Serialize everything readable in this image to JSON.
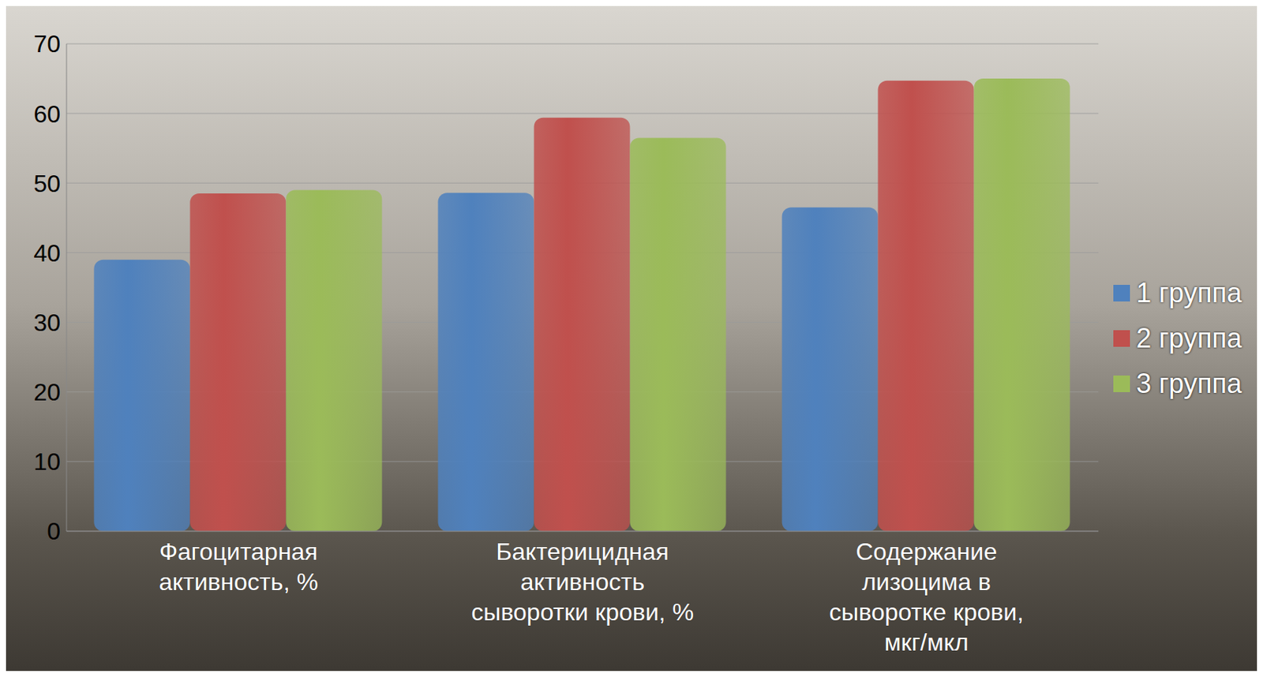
{
  "chart_data": {
    "type": "bar",
    "categories": [
      "Фагоцитарная активность, %",
      "Бактерицидная активность сыворотки крови, %",
      "Содержание лизоцима в сыворотке крови, мкг/мкл"
    ],
    "series": [
      {
        "name": "1 группа",
        "color": "#4f81bd",
        "values": [
          39,
          48.6,
          46.5
        ]
      },
      {
        "name": "2 группа",
        "color": "#c0504d",
        "values": [
          48.5,
          59.4,
          64.7
        ]
      },
      {
        "name": "3 группа",
        "color": "#9bbb59",
        "values": [
          49,
          56.5,
          65
        ]
      }
    ],
    "ylim": [
      0,
      70
    ],
    "yticks": [
      0,
      10,
      20,
      30,
      40,
      50,
      60,
      70
    ],
    "grid": true,
    "legend": "right"
  }
}
